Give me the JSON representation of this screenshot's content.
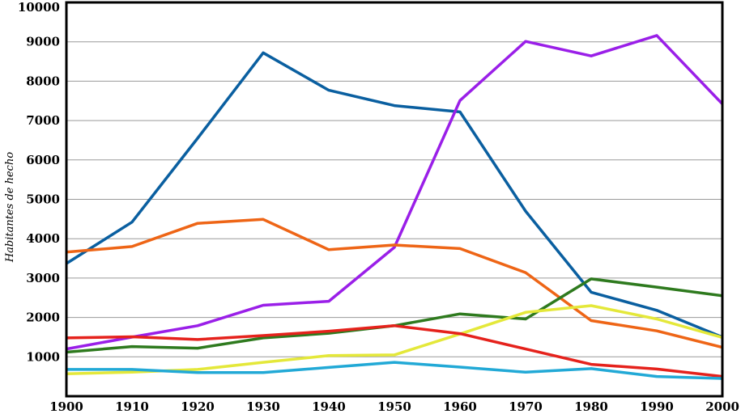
{
  "chart_data": {
    "type": "line",
    "title": "",
    "xlabel": "",
    "ylabel": "Habitantes de hecho",
    "x": [
      1900,
      1910,
      1920,
      1930,
      1940,
      1950,
      1960,
      1970,
      1980,
      1990,
      2000
    ],
    "x_tick_labels": [
      "1900",
      "1910",
      "1920",
      "1930",
      "1940",
      "1950",
      "1960",
      "1970",
      "1980",
      "1990",
      "2000"
    ],
    "y_ticks": [
      1000,
      2000,
      3000,
      4000,
      5000,
      6000,
      7000,
      8000,
      9000,
      10000
    ],
    "y_tick_labels": [
      "1000",
      "2000",
      "3000",
      "4000",
      "5000",
      "6000",
      "7000",
      "8000",
      "9000",
      "10000"
    ],
    "xlim": [
      1900,
      2000
    ],
    "ylim": [
      0,
      10000
    ],
    "grid": "horizontal",
    "legend": "none",
    "series": [
      {
        "color": "#0a5fa0",
        "values": [
          3370,
          4420,
          6550,
          8720,
          7770,
          7380,
          7220,
          4700,
          2640,
          2180,
          1500
        ]
      },
      {
        "color": "#9a1fe8",
        "values": [
          1200,
          1500,
          1790,
          2310,
          2410,
          3780,
          7510,
          9010,
          8640,
          9160,
          7420
        ]
      },
      {
        "color": "#ee6516",
        "values": [
          3660,
          3800,
          4390,
          4490,
          3720,
          3840,
          3750,
          3140,
          1920,
          1660,
          1240
        ]
      },
      {
        "color": "#2e7a1e",
        "values": [
          1120,
          1260,
          1220,
          1480,
          1600,
          1790,
          2090,
          1960,
          2980,
          2770,
          2550
        ]
      },
      {
        "color": "#e4e83a",
        "values": [
          570,
          610,
          680,
          860,
          1030,
          1050,
          1580,
          2130,
          2300,
          1960,
          1490
        ]
      },
      {
        "color": "#e5221c",
        "values": [
          1480,
          1510,
          1440,
          1540,
          1650,
          1790,
          1590,
          1200,
          810,
          690,
          500
        ]
      },
      {
        "color": "#22a9d6",
        "values": [
          680,
          680,
          600,
          600,
          730,
          860,
          740,
          610,
          700,
          500,
          450
        ]
      }
    ]
  }
}
